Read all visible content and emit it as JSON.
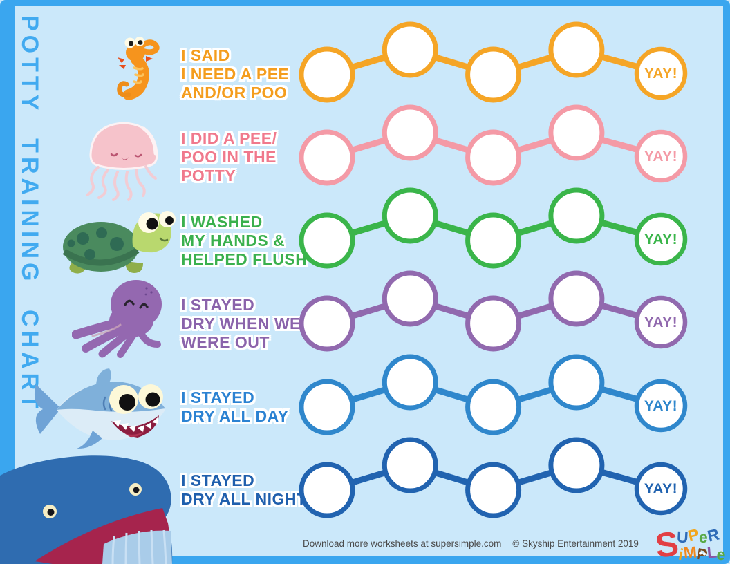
{
  "page": {
    "vertical_title": "POTTY TRAINING CHART",
    "background_color": "#cbe8fa",
    "frame_color": "#3aa6ef",
    "title_color": "#41aaf0"
  },
  "rows": [
    {
      "animal": "seahorse",
      "color": "#f5a526",
      "text_color": "#f49d1d",
      "lines": [
        "I SAID",
        "I NEED A PEE",
        "AND/OR POO"
      ],
      "yay": "YAY!"
    },
    {
      "animal": "jellyfish",
      "color": "#f49aa6",
      "text_color": "#f0798c",
      "lines": [
        "I DID A PEE/",
        "POO IN THE",
        "POTTY"
      ],
      "yay": "YAY!"
    },
    {
      "animal": "turtle",
      "color": "#3ab54a",
      "text_color": "#3ab04d",
      "lines": [
        "I WASHED",
        "MY HANDS &",
        "HELPED FLUSH"
      ],
      "yay": "YAY!"
    },
    {
      "animal": "octopus",
      "color": "#9169ae",
      "text_color": "#8a63ab",
      "lines": [
        "I STAYED",
        "DRY WHEN WE",
        "WERE OUT"
      ],
      "yay": "YAY!"
    },
    {
      "animal": "shark",
      "color": "#2f87cc",
      "text_color": "#2b82d2",
      "lines": [
        "I STAYED",
        "DRY ALL DAY"
      ],
      "yay": "YAY!"
    },
    {
      "animal": "whale",
      "color": "#2163b0",
      "text_color": "#1f5fad",
      "lines": [
        "I STAYED",
        "DRY ALL NIGHT"
      ],
      "yay": "YAY!"
    }
  ],
  "chain": {
    "circles_per_row": 5
  },
  "footer": {
    "download_text": "Download more worksheets at supersimple.com",
    "copyright": "© Skyship Entertainment 2019"
  },
  "logo": {
    "big_letter": {
      "ch": "S",
      "color": "#e23f44"
    },
    "line1": [
      {
        "ch": "U",
        "color": "#2f6cb8"
      },
      {
        "ch": "P",
        "color": "#f2a51c"
      },
      {
        "ch": "e",
        "color": "#58a946"
      },
      {
        "ch": "R",
        "color": "#2f6cb8"
      }
    ],
    "line2": [
      {
        "ch": "i",
        "color": "#f2a51c"
      },
      {
        "ch": "M",
        "color": "#f0871d"
      },
      {
        "ch": "P",
        "color": "#7a4a21",
        "owl": true
      },
      {
        "ch": "L",
        "color": "#8a56a5"
      },
      {
        "ch": "e",
        "color": "#58a946"
      }
    ]
  }
}
